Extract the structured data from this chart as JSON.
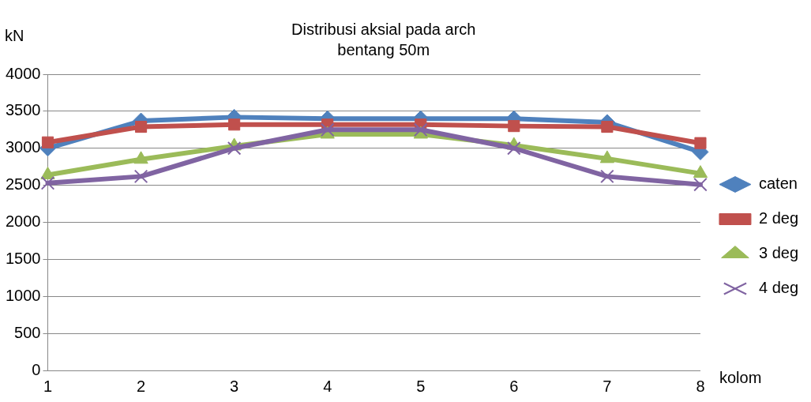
{
  "chart_data": {
    "type": "line",
    "title": "Distribusi aksial pada arch\nbentang 50m",
    "xlabel": "kolom",
    "ylabel": "kN",
    "categories": [
      "1",
      "2",
      "3",
      "4",
      "5",
      "6",
      "7",
      "8"
    ],
    "series": [
      {
        "name": "caten",
        "color": "#4f81bd",
        "marker": "diamond",
        "values": [
          3000,
          3370,
          3420,
          3400,
          3400,
          3400,
          3350,
          2950
        ]
      },
      {
        "name": "2 deg",
        "color": "#c0504d",
        "marker": "square",
        "values": [
          3080,
          3290,
          3320,
          3320,
          3320,
          3300,
          3290,
          3070
        ]
      },
      {
        "name": "3 deg",
        "color": "#9bbb59",
        "marker": "triangle",
        "values": [
          2640,
          2850,
          3030,
          3190,
          3190,
          3040,
          2860,
          2660
        ]
      },
      {
        "name": "4 deg",
        "color": "#8064a2",
        "marker": "cross",
        "values": [
          2530,
          2620,
          3000,
          3250,
          3250,
          3000,
          2620,
          2510
        ]
      }
    ],
    "ylim": [
      0,
      4000
    ],
    "yticks": [
      0,
      500,
      1000,
      1500,
      2000,
      2500,
      3000,
      3500,
      4000
    ],
    "grid": "y",
    "legend": "right",
    "line_style": "solid"
  }
}
